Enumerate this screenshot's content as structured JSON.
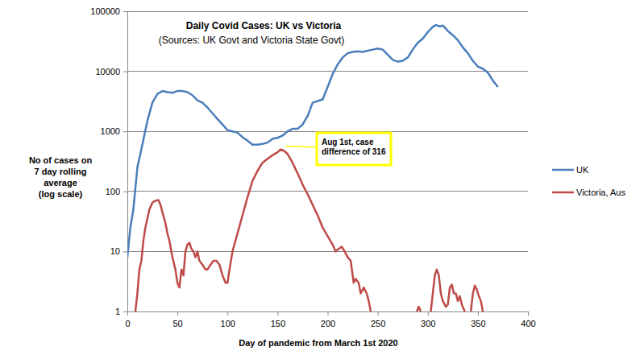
{
  "chart_data": {
    "type": "line",
    "title": "Daily Covid Cases: UK vs Victoria",
    "subtitle": "(Sources:  UK Govt and Victoria State Govt)",
    "x_label": "Day of pandemic from March 1st 2020",
    "y_label": [
      "No of cases on",
      "7 day rolling",
      "average",
      "(log scale)"
    ],
    "log": "y",
    "grid": true,
    "legend": "right",
    "xlim": [
      0,
      400
    ],
    "xticks": [
      0,
      50,
      100,
      150,
      200,
      250,
      300,
      350,
      400
    ],
    "ylim": [
      1,
      100000
    ],
    "yticks": [
      1,
      10,
      100,
      1000,
      10000,
      100000
    ],
    "annotation": {
      "text": [
        "Aug 1st, case",
        "difference of 316"
      ],
      "x": 158,
      "y": 570,
      "color": "#ffff00"
    },
    "series": [
      {
        "name": "UK",
        "color": "#4a7ebb",
        "x": [
          0,
          3,
          6,
          10,
          15,
          20,
          25,
          30,
          35,
          40,
          45,
          50,
          55,
          60,
          65,
          70,
          75,
          80,
          85,
          90,
          95,
          100,
          105,
          110,
          115,
          120,
          125,
          130,
          135,
          140,
          145,
          150,
          155,
          160,
          165,
          170,
          175,
          180,
          185,
          190,
          195,
          200,
          205,
          210,
          215,
          220,
          225,
          230,
          235,
          240,
          245,
          250,
          255,
          260,
          265,
          270,
          275,
          280,
          285,
          290,
          295,
          300,
          305,
          308,
          312,
          315,
          320,
          325,
          330,
          335,
          340,
          345,
          350,
          355,
          360,
          365,
          370
        ],
        "values": [
          8,
          25,
          50,
          250,
          600,
          1500,
          3000,
          4200,
          4700,
          4500,
          4400,
          4700,
          4700,
          4500,
          4000,
          3300,
          3000,
          2500,
          2000,
          1600,
          1300,
          1050,
          1000,
          950,
          800,
          700,
          600,
          600,
          620,
          650,
          750,
          780,
          850,
          1000,
          1100,
          1100,
          1300,
          1800,
          3000,
          3200,
          3400,
          5500,
          9000,
          13000,
          17000,
          20000,
          21000,
          21500,
          21000,
          22000,
          23000,
          24000,
          23000,
          19000,
          15500,
          14500,
          15000,
          17000,
          23000,
          30000,
          35000,
          45000,
          55000,
          59000,
          56000,
          58000,
          47000,
          40000,
          33000,
          25000,
          20000,
          15000,
          12000,
          11000,
          9500,
          7000,
          5500
        ]
      },
      {
        "name": "Victoria, Aus",
        "color": "#be4b48",
        "x": [
          8,
          10,
          12,
          14,
          16,
          18,
          20,
          22,
          25,
          28,
          31,
          33,
          35,
          38,
          40,
          42,
          45,
          48,
          50,
          52,
          54,
          56,
          58,
          60,
          62,
          64,
          66,
          68,
          70,
          72,
          75,
          78,
          80,
          83,
          86,
          89,
          92,
          95,
          98,
          100,
          102,
          105,
          110,
          115,
          120,
          125,
          130,
          135,
          140,
          145,
          150,
          153,
          156,
          160,
          165,
          170,
          175,
          180,
          185,
          190,
          195,
          200,
          205,
          208,
          211,
          214,
          217,
          220,
          223,
          226,
          228,
          231,
          233,
          236,
          239,
          241,
          243,
          245,
          289,
          291,
          293,
          295,
          303,
          305,
          307,
          309,
          311,
          313,
          315,
          318,
          320,
          322,
          324,
          326,
          328,
          330,
          332,
          334,
          337,
          339,
          343,
          345,
          347,
          349,
          351,
          353,
          355
        ],
        "values": [
          1,
          2,
          5,
          7,
          15,
          25,
          35,
          50,
          65,
          70,
          72,
          60,
          45,
          30,
          20,
          15,
          8,
          5,
          3,
          2.5,
          5,
          4,
          10,
          13,
          14,
          11,
          10,
          8,
          10,
          7,
          6,
          5,
          5,
          6,
          7,
          7,
          6,
          4,
          3,
          3,
          5,
          10,
          20,
          40,
          80,
          150,
          220,
          300,
          350,
          400,
          450,
          500,
          480,
          420,
          300,
          200,
          130,
          90,
          60,
          40,
          25,
          18,
          13,
          10,
          11,
          12,
          10,
          8,
          7,
          3,
          3.5,
          3,
          2,
          2.5,
          2,
          1.5,
          1,
          null,
          1,
          1.2,
          1,
          null,
          1,
          2,
          4,
          5,
          4,
          2,
          1.5,
          1.2,
          1.3,
          2.5,
          2.8,
          2,
          2,
          1.5,
          1.8,
          1.3,
          1,
          null,
          1,
          2,
          2.7,
          2.3,
          1.8,
          1.5,
          1
        ]
      }
    ]
  }
}
